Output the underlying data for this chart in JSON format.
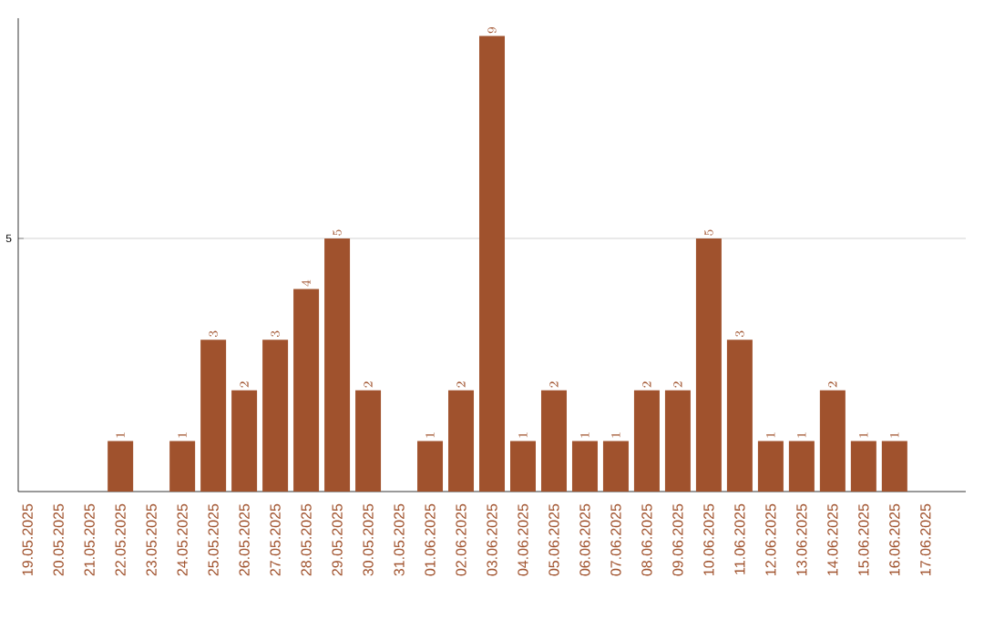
{
  "chart_data": {
    "type": "bar",
    "categories": [
      "19.05.2025",
      "20.05.2025",
      "21.05.2025",
      "22.05.2025",
      "23.05.2025",
      "24.05.2025",
      "25.05.2025",
      "26.05.2025",
      "27.05.2025",
      "28.05.2025",
      "29.05.2025",
      "30.05.2025",
      "31.05.2025",
      "01.06.2025",
      "02.06.2025",
      "03.06.2025",
      "04.06.2025",
      "05.06.2025",
      "06.06.2025",
      "07.06.2025",
      "08.06.2025",
      "09.06.2025",
      "10.06.2025",
      "11.06.2025",
      "12.06.2025",
      "13.06.2025",
      "14.06.2025",
      "15.06.2025",
      "16.06.2025",
      "17.06.2025"
    ],
    "values": [
      null,
      null,
      null,
      1,
      null,
      1,
      3,
      2,
      3,
      4,
      5,
      2,
      null,
      1,
      2,
      9,
      1,
      2,
      1,
      1,
      2,
      2,
      5,
      3,
      1,
      1,
      2,
      1,
      1,
      null
    ],
    "color": "#a0522d",
    "ylim": [
      0,
      9.35
    ],
    "yticks": [
      5
    ],
    "grid": "y",
    "data_labels": true
  }
}
